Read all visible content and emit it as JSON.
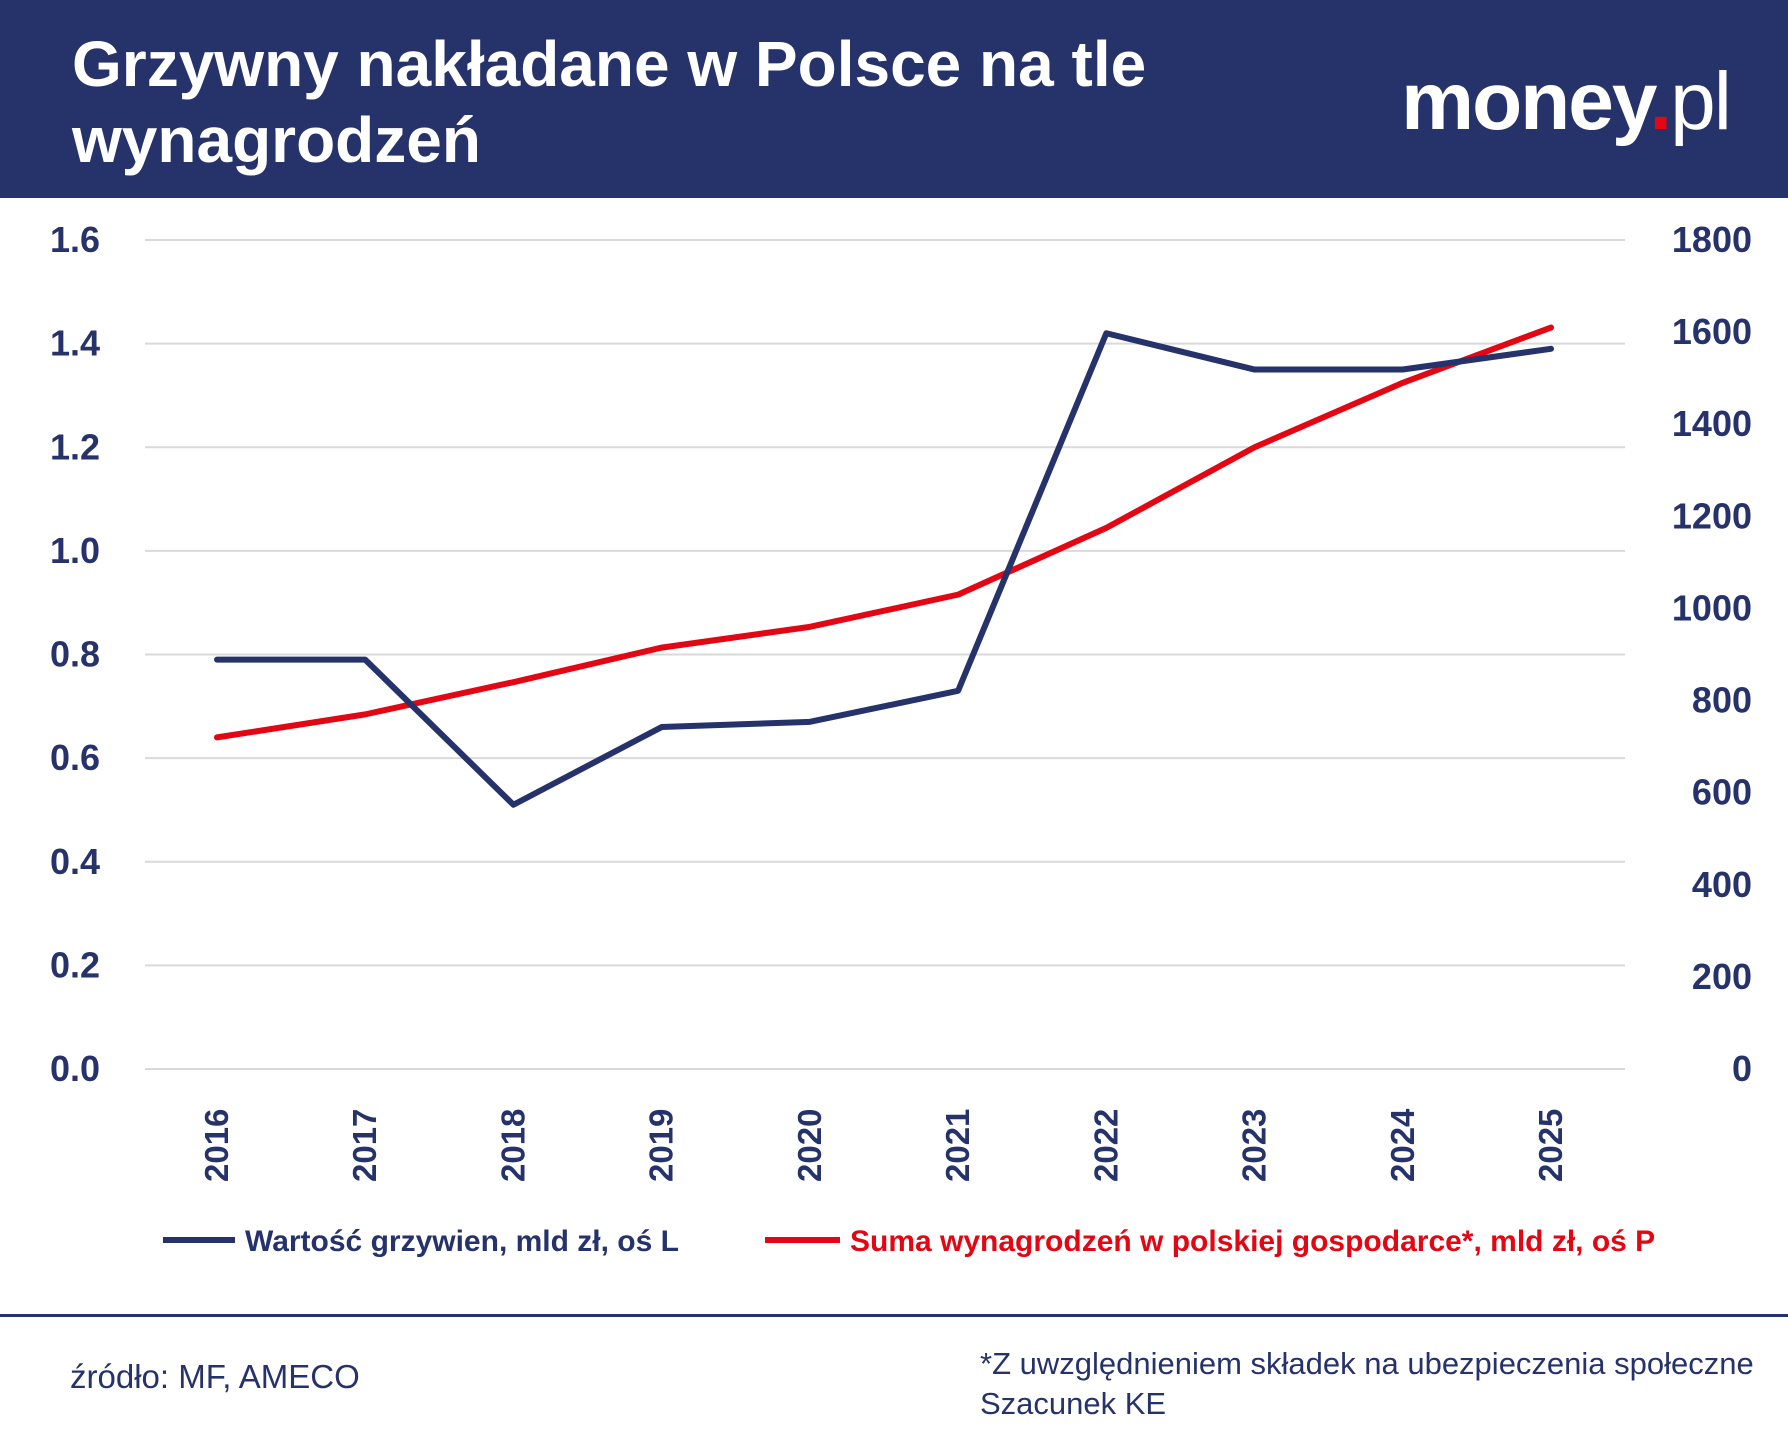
{
  "header": {
    "title": "Grzywny nakładane w Polsce na tle wynagrodzeń",
    "logo_main": "money",
    "logo_dot": ".",
    "logo_suffix": "pl"
  },
  "colors": {
    "navy": "#26336b",
    "red": "#e30613",
    "grid": "#d9d9d9"
  },
  "chart_data": {
    "type": "line",
    "categories": [
      "2016",
      "2017",
      "2018",
      "2019",
      "2020",
      "2021",
      "2022",
      "2023",
      "2024",
      "2025"
    ],
    "series": [
      {
        "name": "Wartość grzywien, mld zł, oś L",
        "axis": "left",
        "color": "#26336b",
        "values": [
          0.79,
          0.79,
          0.51,
          0.66,
          0.67,
          0.73,
          1.42,
          1.35,
          1.35,
          1.39
        ]
      },
      {
        "name": "Suma wynagrodzeń w polskiej gospodarce*, mld zł, oś P",
        "axis": "right",
        "color": "#e30613",
        "values": [
          720,
          770,
          840,
          915,
          960,
          1030,
          1175,
          1350,
          1490,
          1610
        ]
      }
    ],
    "y_left": {
      "min": 0,
      "max": 1.6,
      "ticks": [
        "0.0",
        "0.2",
        "0.4",
        "0.6",
        "0.8",
        "1.0",
        "1.2",
        "1.4",
        "1.6"
      ]
    },
    "y_right": {
      "min": 0,
      "max": 1800,
      "ticks": [
        "0",
        "200",
        "400",
        "600",
        "800",
        "1000",
        "1200",
        "1400",
        "1600",
        "1800"
      ]
    },
    "grid": true,
    "legend_position": "bottom"
  },
  "footer": {
    "source": "źródło: MF, AMECO",
    "note_line1": "*Z uwzględnieniem składek na ubezpieczenia społeczne",
    "note_line2": "Szacunek KE"
  }
}
